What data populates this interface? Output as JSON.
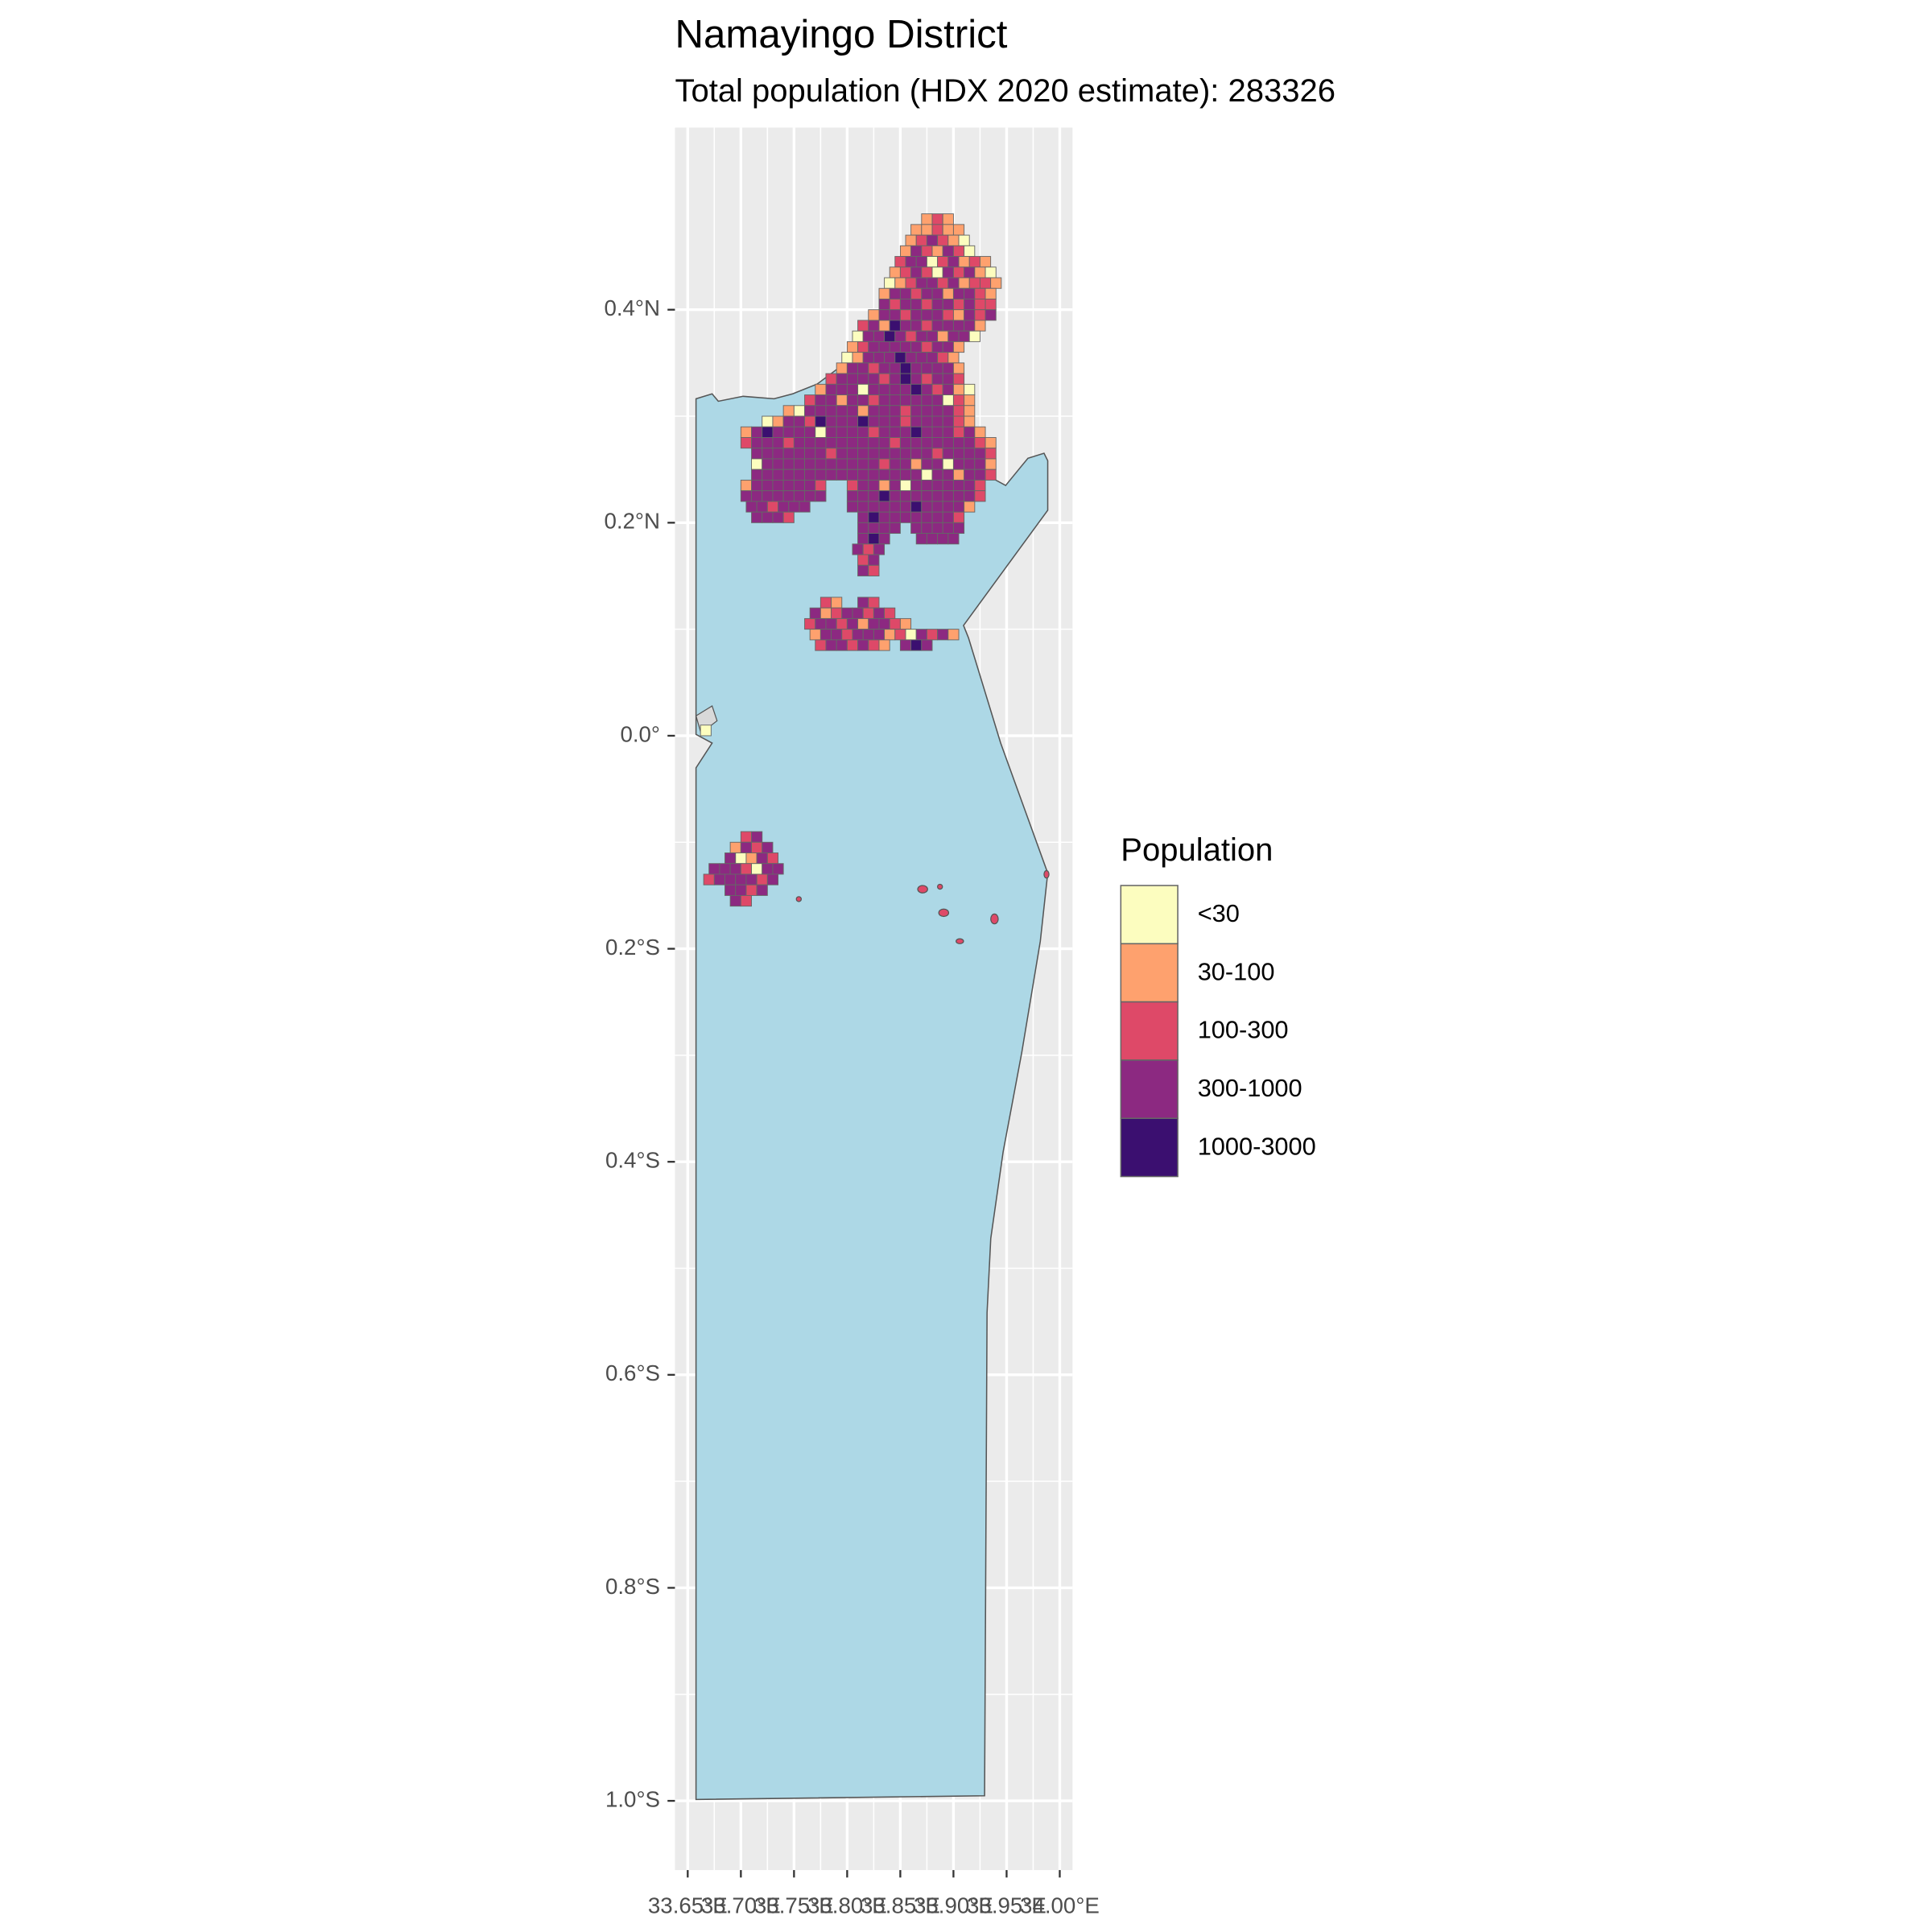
{
  "chart_data": {
    "type": "map",
    "title": "Namayingo District",
    "subtitle": "Total population (HDX 2020 estimate): 283326",
    "xlim": [
      33.638,
      34.012
    ],
    "ylim": [
      -1.065,
      0.571
    ],
    "xticks": [
      {
        "value": 33.65,
        "label": "33.65°E"
      },
      {
        "value": 33.7,
        "label": "33.70°E"
      },
      {
        "value": 33.75,
        "label": "33.75°E"
      },
      {
        "value": 33.8,
        "label": "33.80°E"
      },
      {
        "value": 33.85,
        "label": "33.85°E"
      },
      {
        "value": 33.9,
        "label": "33.90°E"
      },
      {
        "value": 33.95,
        "label": "33.95°E"
      },
      {
        "value": 34.0,
        "label": "34.00°E"
      }
    ],
    "yticks": [
      {
        "value": 0.4,
        "label": "0.4°N"
      },
      {
        "value": 0.2,
        "label": "0.2°N"
      },
      {
        "value": 0,
        "label": "0.0°"
      },
      {
        "value": -0.2,
        "label": "0.2°S"
      },
      {
        "value": -0.4,
        "label": "0.4°S"
      },
      {
        "value": -0.6,
        "label": "0.6°S"
      },
      {
        "value": -0.8,
        "label": "0.8°S"
      },
      {
        "value": -1.0,
        "label": "1.0°S"
      }
    ],
    "grid": true,
    "legend": {
      "title": "Population",
      "labels": [
        "<30",
        "30-100",
        "100-300",
        "300-1000",
        "1000-3000"
      ],
      "colors": [
        "#fcfdbf",
        "#fea16e",
        "#de4968",
        "#8c2981",
        "#3b0f70"
      ]
    },
    "cells": [
      {
        "lat": 0.485,
        "lon0": 33.87,
        "classes": [
          1,
          2,
          1
        ]
      },
      {
        "lat": 0.475,
        "lon0": 33.86,
        "classes": [
          1,
          1,
          2,
          1,
          1
        ]
      },
      {
        "lat": 0.465,
        "lon0": 33.855,
        "classes": [
          1,
          2,
          3,
          2,
          1,
          0
        ]
      },
      {
        "lat": 0.455,
        "lon0": 33.85,
        "classes": [
          1,
          3,
          2,
          1,
          3,
          2,
          0
        ]
      },
      {
        "lat": 0.445,
        "lon0": 33.845,
        "classes": [
          2,
          3,
          3,
          0,
          2,
          3,
          1,
          2,
          1
        ]
      },
      {
        "lat": 0.435,
        "lon0": 33.84,
        "classes": [
          1,
          2,
          3,
          2,
          0,
          3,
          2,
          3,
          1,
          0
        ]
      },
      {
        "lat": 0.425,
        "lon0": 33.835,
        "classes": [
          0,
          1,
          2,
          3,
          3,
          2,
          3,
          1,
          2,
          2,
          1
        ]
      },
      {
        "lat": 0.415,
        "lon0": 33.83,
        "classes": [
          1,
          3,
          3,
          2,
          3,
          3,
          1,
          3,
          3,
          2,
          1
        ]
      },
      {
        "lat": 0.405,
        "lon0": 33.83,
        "classes": [
          3,
          2,
          3,
          3,
          2,
          3,
          3,
          2,
          3,
          2,
          2
        ]
      },
      {
        "lat": 0.395,
        "lon0": 33.82,
        "classes": [
          1,
          3,
          3,
          2,
          3,
          3,
          3,
          2,
          1,
          3,
          2,
          3
        ]
      },
      {
        "lat": 0.385,
        "lon0": 33.81,
        "classes": [
          2,
          3,
          1,
          4,
          3,
          3,
          2,
          3,
          3,
          3,
          3,
          1
        ]
      },
      {
        "lat": 0.375,
        "lon0": 33.805,
        "classes": [
          0,
          3,
          3,
          4,
          3,
          2,
          3,
          3,
          1,
          3,
          3,
          0
        ]
      },
      {
        "lat": 0.365,
        "lon0": 33.8,
        "classes": [
          1,
          2,
          3,
          3,
          3,
          3,
          3,
          2,
          3,
          3,
          1
        ]
      },
      {
        "lat": 0.355,
        "lon0": 33.795,
        "classes": [
          0,
          1,
          3,
          3,
          3,
          4,
          3,
          3,
          3,
          2,
          1
        ]
      },
      {
        "lat": 0.345,
        "lon0": 33.79,
        "classes": [
          1,
          3,
          3,
          2,
          3,
          3,
          4,
          3,
          3,
          3,
          3,
          1
        ]
      },
      {
        "lat": 0.335,
        "lon0": 33.78,
        "classes": [
          2,
          3,
          3,
          3,
          3,
          2,
          3,
          4,
          3,
          2,
          3,
          3,
          2
        ]
      },
      {
        "lat": 0.325,
        "lon0": 33.77,
        "classes": [
          1,
          3,
          3,
          3,
          0,
          3,
          3,
          3,
          3,
          4,
          3,
          2,
          3,
          1,
          0
        ]
      },
      {
        "lat": 0.315,
        "lon0": 33.76,
        "classes": [
          2,
          3,
          3,
          1,
          3,
          3,
          2,
          3,
          3,
          3,
          3,
          3,
          3,
          0,
          2,
          1
        ]
      },
      {
        "lat": 0.305,
        "lon0": 33.74,
        "classes": [
          1,
          0,
          3,
          3,
          3,
          3,
          3,
          1,
          3,
          3,
          3,
          2,
          3,
          3,
          3,
          3,
          2,
          1
        ]
      },
      {
        "lat": 0.295,
        "lon0": 33.72,
        "classes": [
          0,
          1,
          3,
          3,
          2,
          4,
          3,
          3,
          3,
          4,
          3,
          3,
          3,
          2,
          3,
          3,
          3,
          3,
          2,
          1
        ]
      },
      {
        "lat": 0.285,
        "lon0": 33.7,
        "classes": [
          1,
          3,
          4,
          3,
          3,
          3,
          3,
          0,
          3,
          3,
          3,
          3,
          2,
          3,
          3,
          3,
          4,
          3,
          3,
          3,
          2,
          3,
          1
        ]
      },
      {
        "lat": 0.275,
        "lon0": 33.7,
        "classes": [
          2,
          3,
          3,
          3,
          2,
          3,
          3,
          3,
          3,
          3,
          3,
          3,
          3,
          3,
          2,
          3,
          3,
          3,
          3,
          3,
          3,
          3,
          2,
          1
        ]
      },
      {
        "lat": 0.265,
        "lon0": 33.71,
        "classes": [
          3,
          3,
          3,
          3,
          3,
          3,
          3,
          2,
          3,
          3,
          3,
          3,
          3,
          3,
          3,
          3,
          3,
          2,
          3,
          3,
          3,
          3,
          2
        ]
      },
      {
        "lat": 0.255,
        "lon0": 33.71,
        "classes": [
          0,
          3,
          3,
          3,
          3,
          3,
          3,
          3,
          3,
          3,
          3,
          3,
          2,
          3,
          3,
          1,
          3,
          3,
          0,
          3,
          3,
          3,
          1
        ]
      },
      {
        "lat": 0.245,
        "lon0": 33.71,
        "classes": [
          3,
          3,
          3,
          3,
          3,
          3,
          3,
          3,
          3,
          3,
          3,
          3,
          3,
          3,
          3,
          3,
          0,
          3,
          3,
          1,
          3,
          3,
          2
        ]
      },
      {
        "lat": 0.235,
        "lon0": 33.7,
        "classes": [
          1,
          3,
          3,
          3,
          3,
          3,
          3,
          2
        ]
      },
      {
        "lat": 0.235,
        "lon0": 33.8,
        "classes": [
          2,
          3,
          3,
          1,
          3,
          0,
          3,
          3,
          3,
          3,
          3,
          3,
          2
        ]
      },
      {
        "lat": 0.225,
        "lon0": 33.7,
        "classes": [
          3,
          3,
          3,
          3,
          3,
          3,
          3,
          3
        ]
      },
      {
        "lat": 0.225,
        "lon0": 33.8,
        "classes": [
          3,
          3,
          3,
          4,
          3,
          3,
          3,
          3,
          3,
          3,
          3,
          3,
          2
        ]
      },
      {
        "lat": 0.215,
        "lon0": 33.705,
        "classes": [
          3,
          3,
          2,
          3,
          3,
          3
        ]
      },
      {
        "lat": 0.215,
        "lon0": 33.8,
        "classes": [
          3,
          3,
          3,
          3,
          3,
          3,
          4,
          3,
          3,
          3,
          3,
          1
        ]
      },
      {
        "lat": 0.205,
        "lon0": 33.71,
        "classes": [
          3,
          3,
          3,
          2
        ]
      },
      {
        "lat": 0.205,
        "lon0": 33.81,
        "classes": [
          3,
          4,
          3,
          3,
          3,
          3,
          3,
          3,
          3,
          2
        ]
      },
      {
        "lat": 0.195,
        "lon0": 33.81,
        "classes": [
          3,
          3,
          3,
          3
        ]
      },
      {
        "lat": 0.195,
        "lon0": 33.86,
        "classes": [
          3,
          3,
          3,
          3,
          3
        ]
      },
      {
        "lat": 0.185,
        "lon0": 33.81,
        "classes": [
          3,
          4,
          3
        ]
      },
      {
        "lat": 0.185,
        "lon0": 33.865,
        "classes": [
          3,
          3,
          3,
          3
        ]
      },
      {
        "lat": 0.175,
        "lon0": 33.805,
        "classes": [
          3,
          2,
          3
        ]
      },
      {
        "lat": 0.165,
        "lon0": 33.81,
        "classes": [
          2,
          3
        ]
      },
      {
        "lat": 0.155,
        "lon0": 33.81,
        "classes": [
          3,
          2
        ]
      },
      {
        "lat": 0.125,
        "lon0": 33.775,
        "classes": [
          2,
          1
        ]
      },
      {
        "lat": 0.125,
        "lon0": 33.81,
        "classes": [
          3,
          2
        ]
      },
      {
        "lat": 0.115,
        "lon0": 33.765,
        "classes": [
          3,
          1,
          2,
          3,
          3,
          2,
          3,
          2
        ]
      },
      {
        "lat": 0.105,
        "lon0": 33.76,
        "classes": [
          2,
          3,
          3,
          2,
          3,
          1,
          3,
          3,
          2,
          1
        ]
      },
      {
        "lat": 0.095,
        "lon0": 33.765,
        "classes": [
          1,
          3,
          3,
          2,
          3,
          3,
          3,
          1,
          2,
          0,
          3,
          2,
          3,
          1
        ]
      },
      {
        "lat": 0.085,
        "lon0": 33.77,
        "classes": [
          2,
          3,
          3,
          2
        ]
      },
      {
        "lat": 0.085,
        "lon0": 33.81,
        "classes": [
          3,
          2,
          1
        ]
      },
      {
        "lat": 0.085,
        "lon0": 33.85,
        "classes": [
          3,
          4,
          3
        ]
      },
      {
        "lat": 0.005,
        "lon0": 33.662,
        "classes": [
          0
        ]
      },
      {
        "lat": -0.095,
        "lon0": 33.7,
        "classes": [
          2,
          3
        ]
      },
      {
        "lat": -0.105,
        "lon0": 33.69,
        "classes": [
          1,
          3,
          2,
          3
        ]
      },
      {
        "lat": -0.115,
        "lon0": 33.685,
        "classes": [
          3,
          0,
          1,
          3,
          2
        ]
      },
      {
        "lat": -0.125,
        "lon0": 33.67,
        "classes": [
          3,
          3,
          3,
          2,
          0,
          3,
          3
        ]
      },
      {
        "lat": -0.135,
        "lon0": 33.665,
        "classes": [
          2,
          3,
          3,
          3,
          3,
          2,
          3
        ]
      },
      {
        "lat": -0.145,
        "lon0": 33.685,
        "classes": [
          3,
          3,
          2,
          3
        ]
      },
      {
        "lat": -0.155,
        "lon0": 33.69,
        "classes": [
          3,
          2
        ]
      }
    ]
  }
}
